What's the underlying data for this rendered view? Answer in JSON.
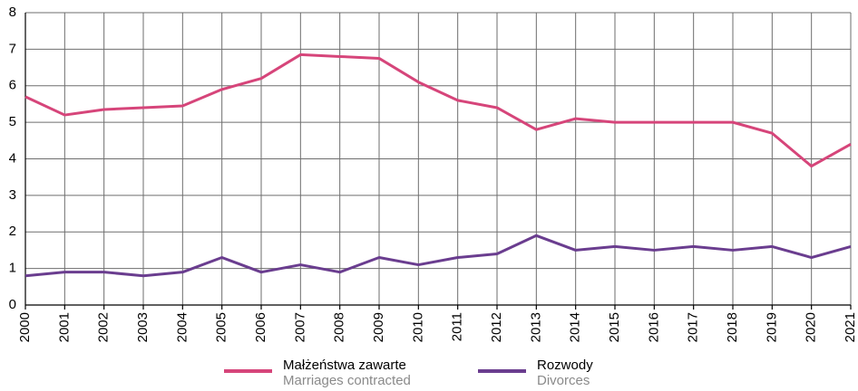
{
  "chart_data": {
    "type": "line",
    "categories": [
      "2000",
      "2001",
      "2002",
      "2003",
      "2004",
      "2005",
      "2006",
      "2007",
      "2008",
      "2009",
      "2010",
      "2011",
      "2012",
      "2013",
      "2014",
      "2015",
      "2016",
      "2017",
      "2018",
      "2019",
      "2020",
      "2021"
    ],
    "series": [
      {
        "name": "Małżeństwa zawarte",
        "name_en": "Marriages contracted",
        "color": "#d6457a",
        "values": [
          5.7,
          5.2,
          5.35,
          5.4,
          5.45,
          5.9,
          6.2,
          6.85,
          6.8,
          6.75,
          6.1,
          5.6,
          5.4,
          4.8,
          5.1,
          5.0,
          5.0,
          5.0,
          5.0,
          4.7,
          3.8,
          4.4
        ]
      },
      {
        "name": "Rozwody",
        "name_en": "Divorces",
        "color": "#6a3d8f",
        "values": [
          0.8,
          0.9,
          0.9,
          0.8,
          0.9,
          1.3,
          0.9,
          1.1,
          0.9,
          1.3,
          1.1,
          1.3,
          1.4,
          1.9,
          1.5,
          1.6,
          1.5,
          1.6,
          1.5,
          1.6,
          1.3,
          1.6
        ]
      }
    ],
    "ylim": [
      0,
      8
    ],
    "yticks": [
      0,
      1,
      2,
      3,
      4,
      5,
      6,
      7,
      8
    ],
    "grid": true
  }
}
